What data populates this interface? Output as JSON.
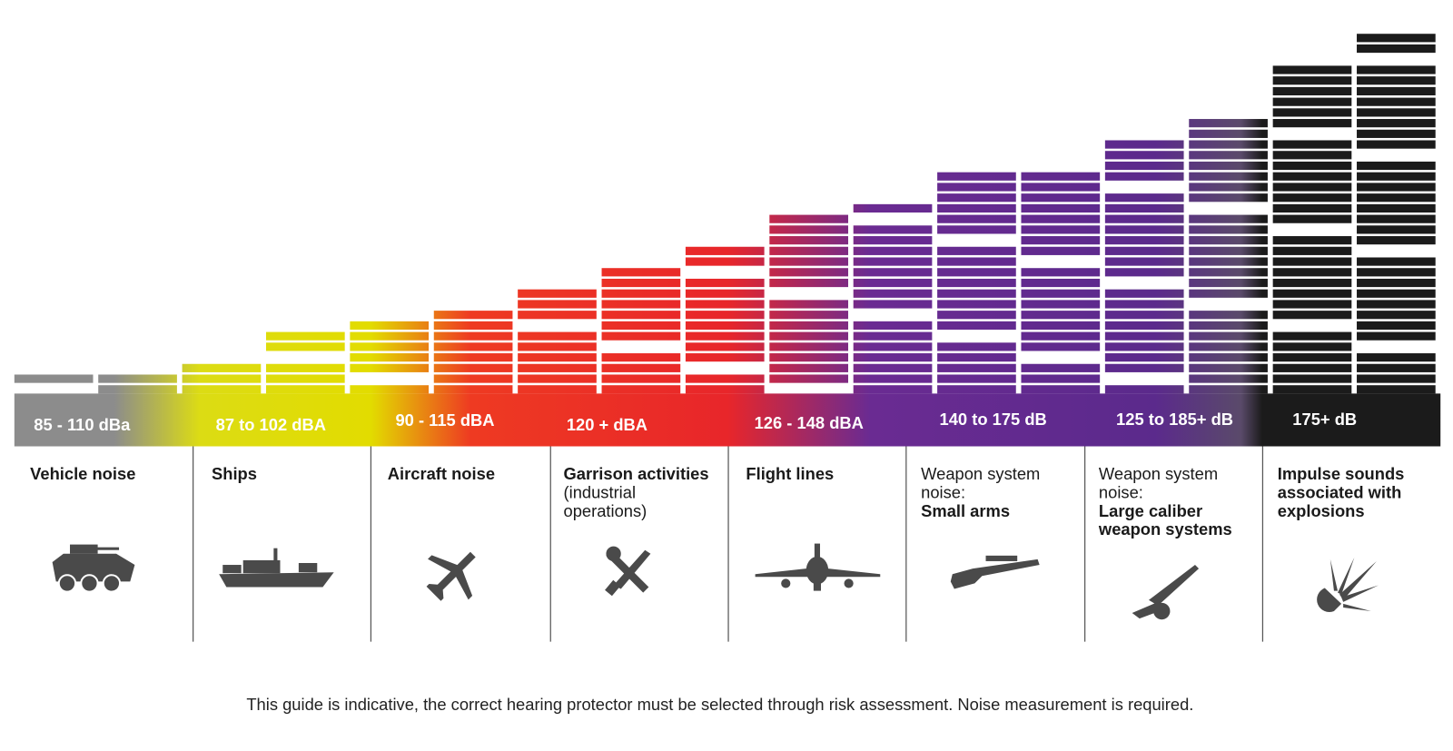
{
  "columns": [
    {
      "range": "85 - 110 dBa",
      "lines": [
        {
          "text": "Vehicle noise",
          "bold": true
        }
      ]
    },
    {
      "range": "87 to 102 dBA",
      "lines": [
        {
          "text": "Ships",
          "bold": true
        }
      ]
    },
    {
      "range": "90 - 115 dBA",
      "lines": [
        {
          "text": "Aircraft noise",
          "bold": true
        }
      ]
    },
    {
      "range": "120 + dBA",
      "lines": [
        {
          "text": "Garrison activities",
          "bold": true
        },
        {
          "text": "(industrial",
          "bold": false
        },
        {
          "text": "operations)",
          "bold": false
        }
      ]
    },
    {
      "range": "126 - 148 dBA",
      "lines": [
        {
          "text": "Flight lines",
          "bold": true
        }
      ]
    },
    {
      "range": "140 to 175 dB",
      "lines": [
        {
          "text": "Weapon system",
          "bold": false
        },
        {
          "text": "noise:",
          "bold": false
        },
        {
          "text": "Small arms",
          "bold": true
        }
      ]
    },
    {
      "range": "125 to 185+ dB",
      "lines": [
        {
          "text": "Weapon system",
          "bold": false
        },
        {
          "text": "noise:",
          "bold": false
        },
        {
          "text": "Large caliber",
          "bold": true
        },
        {
          "text": "weapon systems",
          "bold": true
        }
      ]
    },
    {
      "range": "175+ dB",
      "lines": [
        {
          "text": "Impulse sounds",
          "bold": true
        },
        {
          "text": "associated with",
          "bold": true
        },
        {
          "text": "explosions",
          "bold": true
        }
      ]
    }
  ],
  "footer": "This guide is indicative, the correct hearing protector must be selected through risk assessment. Noise measurement is required."
}
